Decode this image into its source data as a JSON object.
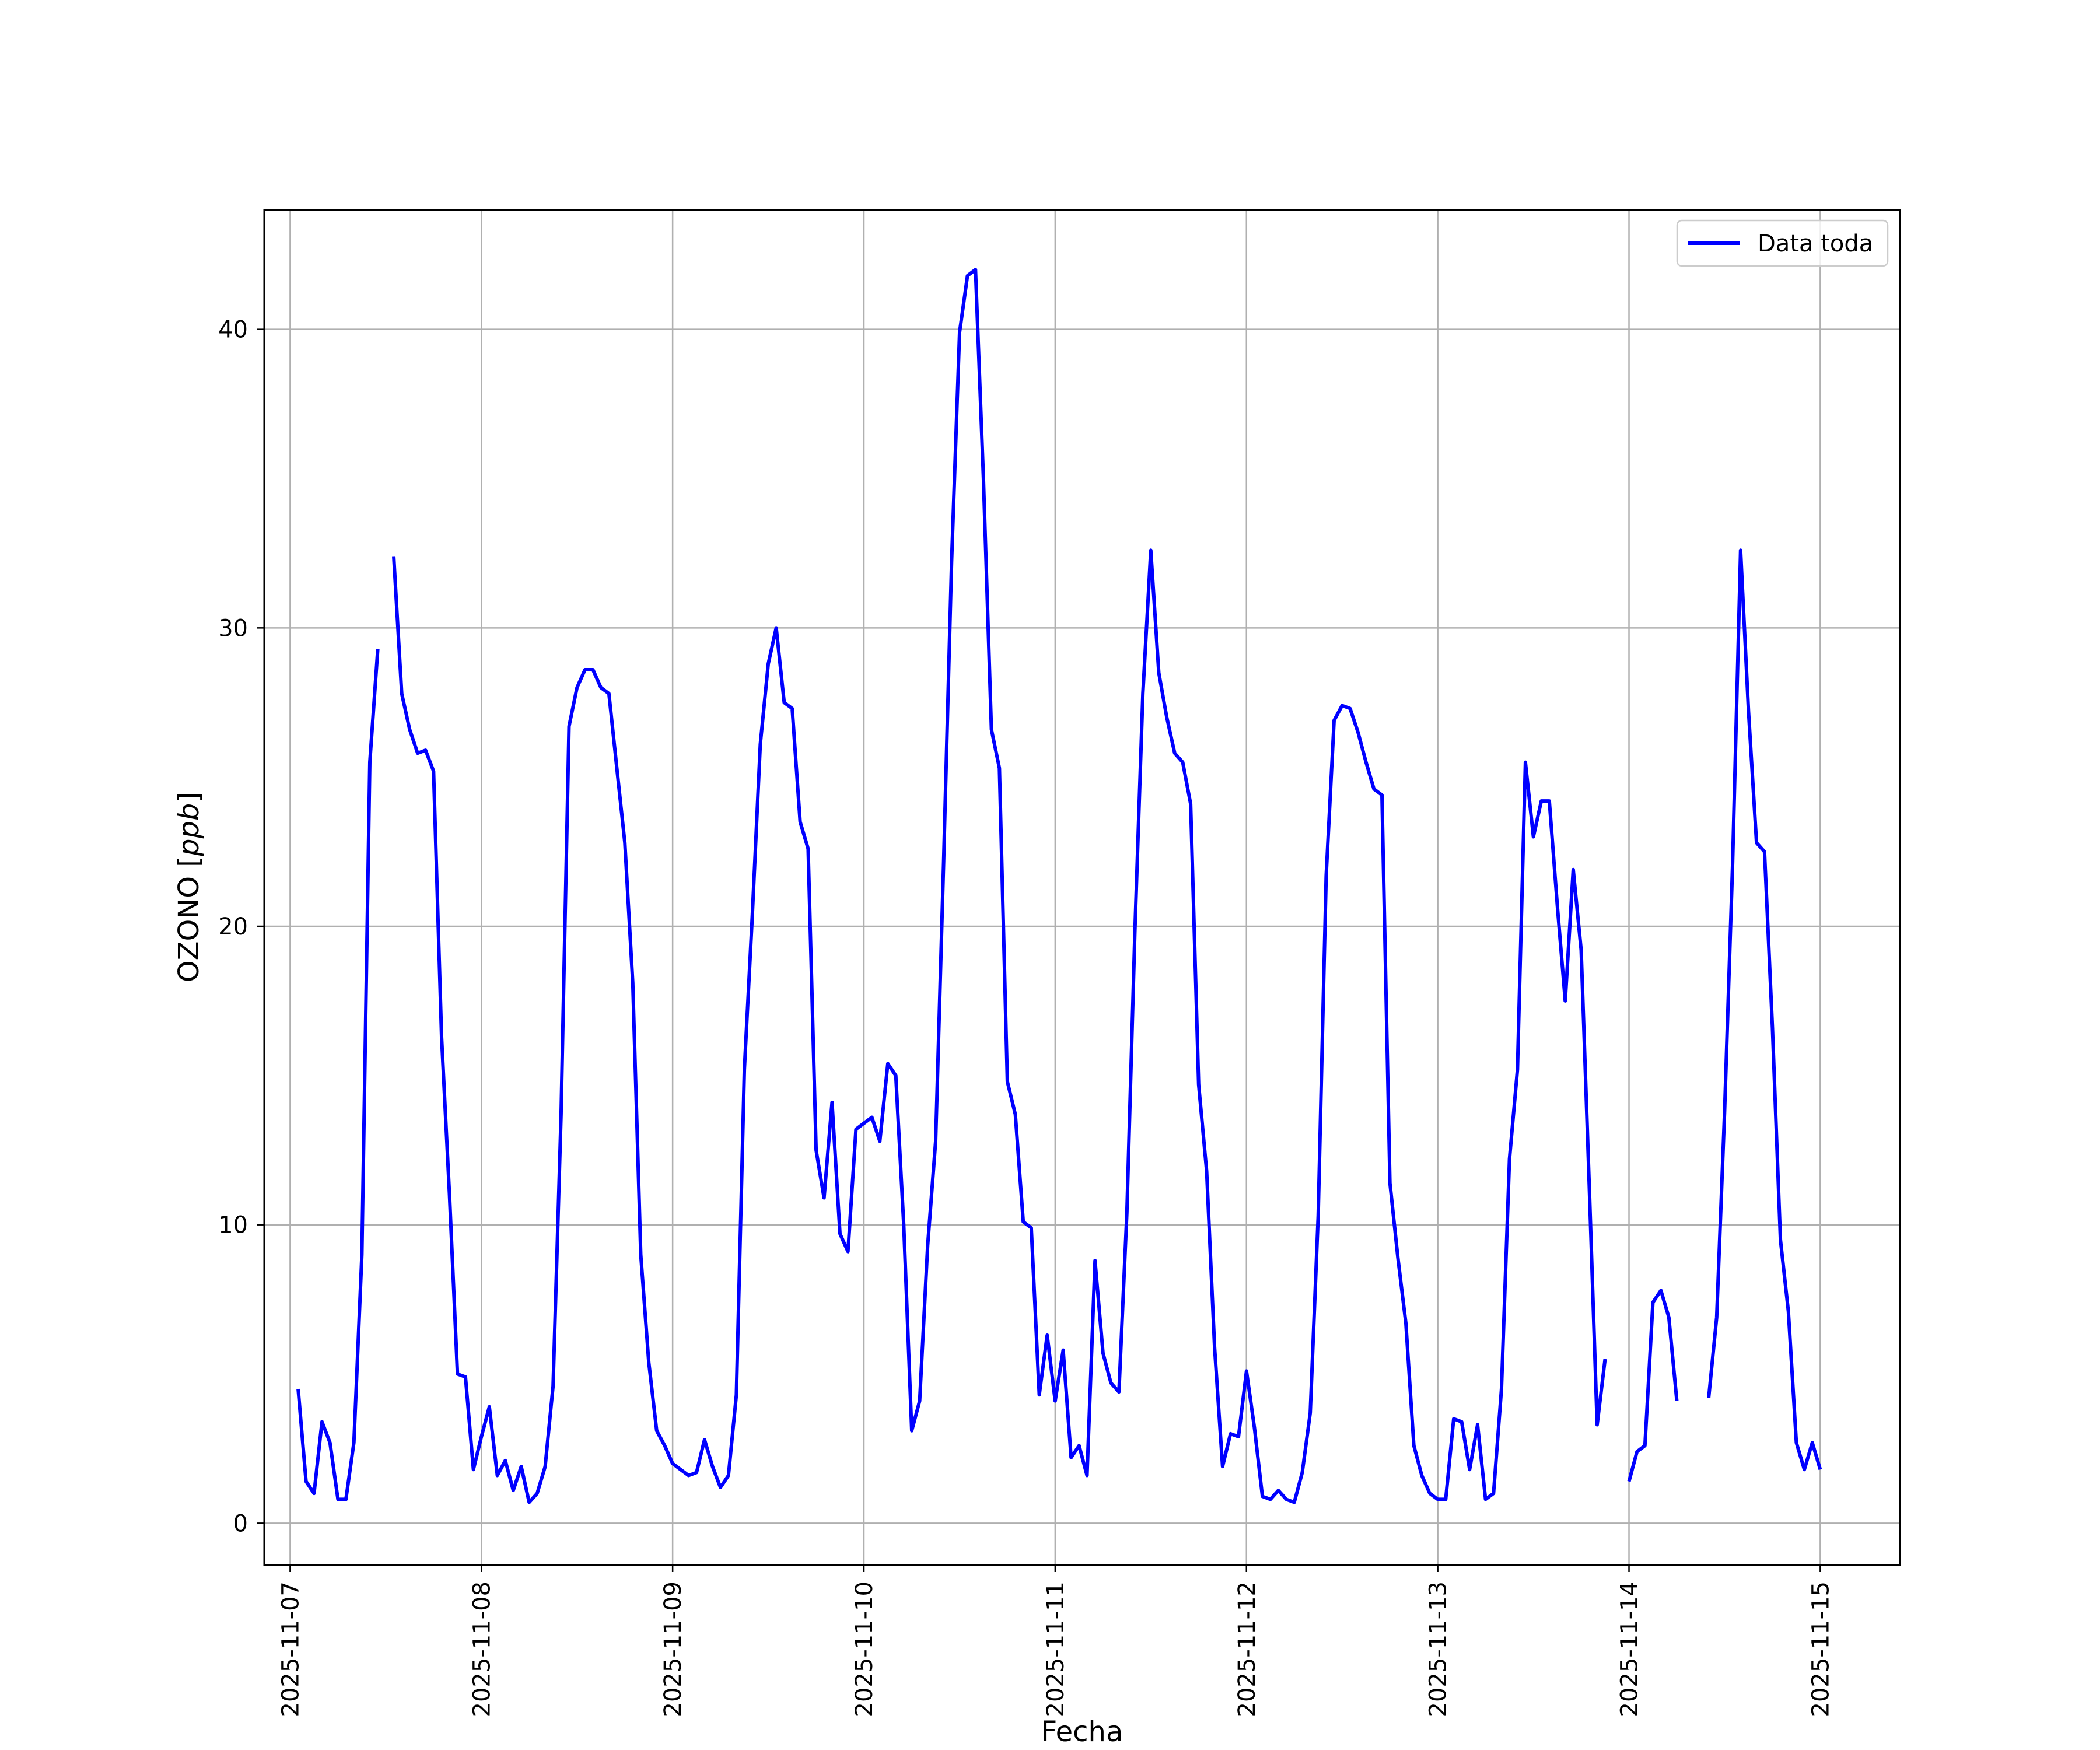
{
  "chart_data": {
    "type": "line",
    "xlabel": "Fecha",
    "ylabel_text": "OZONO [",
    "ylabel_unit": "ppb",
    "ylabel_close": "]",
    "xlim": [
      "2025-11-06 20:45",
      "2025-11-15 10:00"
    ],
    "ylim": [
      -1.4,
      44
    ],
    "x_ticks": [
      "2025-11-07",
      "2025-11-08",
      "2025-11-09",
      "2025-11-10",
      "2025-11-11",
      "2025-11-12",
      "2025-11-13",
      "2025-11-14",
      "2025-11-15"
    ],
    "y_ticks": [
      0,
      10,
      20,
      30,
      40
    ],
    "grid": true,
    "legend_position": "top-right",
    "series": [
      {
        "name": "Data toda",
        "color": "#0000ff",
        "x_start": "2025-11-07 01:00",
        "step_hours": 1,
        "values": [
          4.5,
          1.4,
          1.0,
          3.4,
          2.7,
          0.8,
          0.8,
          2.7,
          9.0,
          25.5,
          29.3,
          null,
          32.4,
          27.8,
          26.6,
          25.8,
          25.9,
          25.2,
          16.3,
          11.0,
          5.0,
          4.9,
          1.8,
          2.9,
          3.9,
          1.6,
          2.1,
          1.1,
          1.9,
          0.7,
          1.0,
          1.9,
          4.6,
          13.7,
          26.7,
          28.0,
          28.6,
          28.6,
          28.0,
          27.8,
          25.3,
          22.8,
          18.1,
          9.0,
          5.4,
          3.1,
          2.6,
          2.0,
          1.8,
          1.6,
          1.7,
          2.8,
          1.9,
          1.2,
          1.6,
          4.3,
          15.2,
          20.4,
          26.1,
          28.8,
          30.0,
          27.5,
          27.3,
          23.5,
          22.6,
          12.5,
          10.9,
          14.1,
          9.7,
          9.1,
          13.2,
          13.4,
          13.6,
          12.8,
          15.4,
          15.0,
          10.0,
          3.1,
          4.1,
          9.3,
          12.8,
          22.1,
          32.2,
          39.9,
          41.8,
          42.0,
          35.0,
          26.6,
          25.3,
          14.8,
          13.7,
          10.1,
          9.9,
          4.3,
          6.3,
          4.1,
          5.8,
          2.2,
          2.6,
          1.6,
          8.8,
          5.7,
          4.7,
          4.4,
          10.4,
          19.8,
          27.8,
          32.6,
          28.5,
          27.0,
          25.8,
          25.5,
          24.1,
          14.7,
          11.8,
          5.9,
          1.9,
          3.0,
          2.9,
          5.1,
          3.2,
          0.9,
          0.8,
          1.1,
          0.8,
          0.7,
          1.7,
          3.7,
          10.3,
          21.7,
          26.9,
          27.4,
          27.3,
          26.5,
          25.5,
          24.6,
          24.4,
          11.4,
          8.9,
          6.7,
          2.6,
          1.6,
          1.0,
          0.8,
          0.8,
          3.5,
          3.4,
          1.8,
          3.3,
          0.8,
          1.0,
          4.5,
          12.2,
          15.2,
          25.5,
          23.0,
          24.2,
          24.2,
          20.7,
          17.5,
          21.9,
          19.2,
          11.4,
          3.3,
          5.5,
          null,
          null,
          1.4,
          2.4,
          2.6,
          7.4,
          7.8,
          6.9,
          4.1,
          null,
          null,
          null,
          4.2,
          6.9,
          13.8,
          22.1,
          32.6,
          27.2,
          22.8,
          22.5,
          16.6,
          9.5,
          7.1,
          2.7,
          1.8,
          2.7,
          1.8
        ]
      }
    ]
  }
}
